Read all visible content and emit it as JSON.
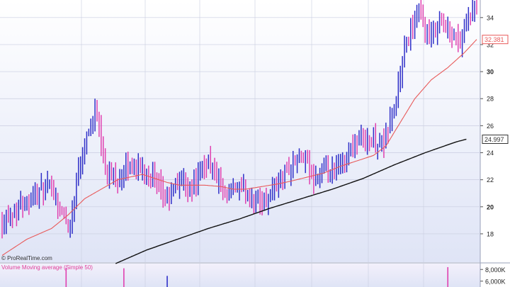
{
  "watermark": "© ProRealTime.com",
  "volume_panel_title": "Volume Moving average (Simple 50)",
  "colors": {
    "up_bar": "#2f2fc8",
    "down_bar": "#e040b0",
    "ma_short": "#e85a5a",
    "ma_long": "#111111",
    "grid": "#c9cde0",
    "panel_bg_top": "#ffffff",
    "panel_bg_bottom": "#dfe4f6",
    "axis_bg": "#ffffff",
    "last_price_tag": "#e85a5a",
    "ma_tag": "#333333"
  },
  "chart_data": {
    "type": "ohlc",
    "price_axis": {
      "ylim": [
        15.9,
        35.3
      ],
      "ticks": [
        18,
        20,
        22,
        24,
        26,
        28,
        30,
        32,
        34
      ],
      "bold_ticks": [
        20,
        30
      ],
      "grid": true
    },
    "last_price_label": "32.381",
    "last_price": 32.381,
    "ma_long_label": "24.997",
    "ma_long_last": 24.997,
    "anchors": [
      [
        0,
        18.9
      ],
      [
        8,
        20.0
      ],
      [
        16,
        21.0
      ],
      [
        24,
        21.4
      ],
      [
        28,
        19.8
      ],
      [
        33,
        18.4
      ],
      [
        37,
        23.0
      ],
      [
        42,
        25.8
      ],
      [
        46,
        27.2
      ],
      [
        50,
        22.5
      ],
      [
        56,
        22.0
      ],
      [
        62,
        23.0
      ],
      [
        68,
        22.8
      ],
      [
        72,
        22.5
      ],
      [
        75,
        21.4
      ],
      [
        80,
        20.6
      ],
      [
        86,
        22.0
      ],
      [
        92,
        21.4
      ],
      [
        96,
        22.5
      ],
      [
        100,
        23.5
      ],
      [
        104,
        22.2
      ],
      [
        108,
        20.4
      ],
      [
        113,
        21.5
      ],
      [
        118,
        21.0
      ],
      [
        124,
        20.3
      ],
      [
        128,
        20.6
      ],
      [
        132,
        21.5
      ],
      [
        137,
        22.5
      ],
      [
        142,
        23.4
      ],
      [
        147,
        23.6
      ],
      [
        150,
        22.0
      ],
      [
        155,
        22.5
      ],
      [
        160,
        22.4
      ],
      [
        165,
        23.2
      ],
      [
        170,
        24.5
      ],
      [
        175,
        25.2
      ],
      [
        180,
        24.8
      ],
      [
        185,
        24.7
      ],
      [
        188,
        26.5
      ],
      [
        191,
        28.0
      ],
      [
        195,
        31.5
      ],
      [
        198,
        33.0
      ],
      [
        202,
        34.4
      ],
      [
        207,
        32.2
      ],
      [
        212,
        33.8
      ],
      [
        217,
        33.0
      ],
      [
        222,
        32.2
      ],
      [
        228,
        34.6
      ]
    ],
    "ma_short_anchors": [
      [
        0,
        16.4
      ],
      [
        12,
        17.6
      ],
      [
        24,
        18.4
      ],
      [
        32,
        19.4
      ],
      [
        40,
        20.6
      ],
      [
        48,
        21.3
      ],
      [
        56,
        22.0
      ],
      [
        62,
        22.2
      ],
      [
        68,
        22.4
      ],
      [
        74,
        22.1
      ],
      [
        80,
        21.8
      ],
      [
        86,
        21.6
      ],
      [
        92,
        21.6
      ],
      [
        98,
        21.6
      ],
      [
        106,
        21.5
      ],
      [
        112,
        21.3
      ],
      [
        118,
        21.3
      ],
      [
        126,
        21.5
      ],
      [
        134,
        21.7
      ],
      [
        140,
        21.9
      ],
      [
        148,
        22.2
      ],
      [
        156,
        22.5
      ],
      [
        164,
        23.0
      ],
      [
        172,
        23.4
      ],
      [
        180,
        23.8
      ],
      [
        186,
        24.5
      ],
      [
        192,
        26.0
      ],
      [
        200,
        28.0
      ],
      [
        208,
        29.4
      ],
      [
        216,
        30.3
      ],
      [
        224,
        31.4
      ],
      [
        230,
        32.38
      ]
    ],
    "ma_long_anchors": [
      [
        55,
        15.8
      ],
      [
        70,
        16.8
      ],
      [
        85,
        17.6
      ],
      [
        100,
        18.4
      ],
      [
        115,
        19.1
      ],
      [
        130,
        19.9
      ],
      [
        145,
        20.6
      ],
      [
        160,
        21.3
      ],
      [
        175,
        22.1
      ],
      [
        190,
        23.1
      ],
      [
        205,
        24.0
      ],
      [
        220,
        24.8
      ],
      [
        225,
        25.0
      ]
    ],
    "volume_axis": {
      "ticks": [
        6000,
        8000
      ],
      "tick_labels": [
        "6,000K",
        "8,000K"
      ],
      "ylim": [
        5000,
        9000
      ]
    },
    "volume_spikes": [
      {
        "bar": 31,
        "value": 8300,
        "dir": "down"
      },
      {
        "bar": 59,
        "value": 8200,
        "dir": "down"
      },
      {
        "bar": 80,
        "value": 6900,
        "dir": "up"
      },
      {
        "bar": 216,
        "value": 8400,
        "dir": "down"
      }
    ]
  }
}
